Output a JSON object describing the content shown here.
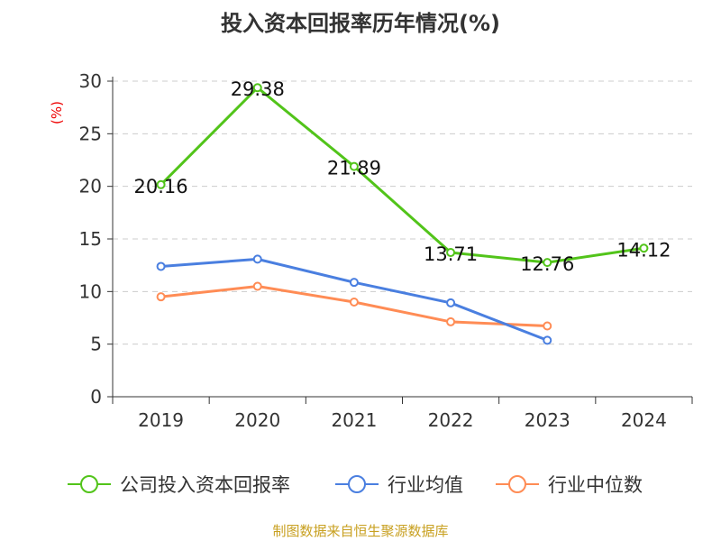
{
  "chart_data": {
    "type": "line",
    "title": "投入资本回报率历年情况(%)",
    "ylabel": "(%)",
    "categories": [
      "2019",
      "2020",
      "2021",
      "2022",
      "2023",
      "2024"
    ],
    "ylim": [
      0,
      30
    ],
    "yticks": [
      0,
      5,
      10,
      15,
      20,
      25,
      30
    ],
    "grid": true,
    "legend_position": "bottom",
    "series": [
      {
        "name": "公司投入资本回报率",
        "color": "#52c41a",
        "values": [
          20.16,
          29.38,
          21.89,
          13.71,
          12.76,
          14.12
        ],
        "labels": [
          "20.16",
          "29.38",
          "21.89",
          "13.71",
          "12.76",
          "14.12"
        ]
      },
      {
        "name": "行业均值",
        "color": "#4a7fe0",
        "values": [
          12.39,
          13.08,
          10.87,
          8.92,
          5.37,
          null
        ]
      },
      {
        "name": "行业中位数",
        "color": "#ff8c55",
        "values": [
          9.5,
          10.5,
          9.0,
          7.12,
          6.73,
          null
        ]
      }
    ]
  },
  "footer": "制图数据来自恒生聚源数据库"
}
